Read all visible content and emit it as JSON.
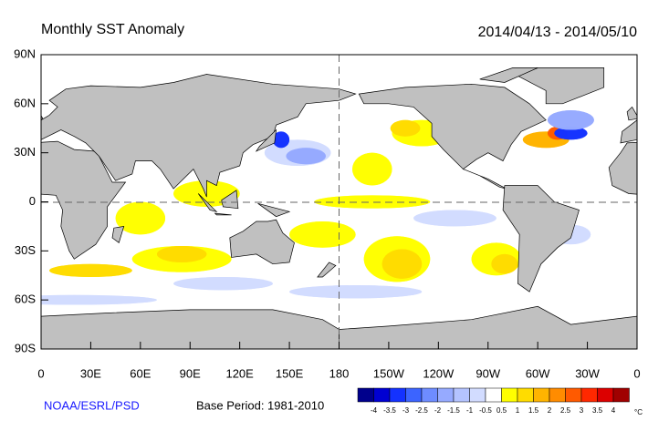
{
  "header": {
    "title": "Monthly SST Anomaly",
    "date_range": "2014/04/13 - 2014/05/10"
  },
  "map": {
    "lat_labels": [
      "90N",
      "60N",
      "30N",
      "0",
      "30S",
      "60S",
      "90S"
    ],
    "lon_labels": [
      "0",
      "30E",
      "60E",
      "90E",
      "120E",
      "150E",
      "180",
      "150W",
      "120W",
      "90W",
      "60W",
      "30W",
      "0"
    ]
  },
  "footer": {
    "credit": "NOAA/ESRL/PSD",
    "base_period": "Base Period: 1981-2010"
  },
  "colorbar": {
    "colors": [
      "#00008c",
      "#0000d2",
      "#1432ff",
      "#3c64ff",
      "#6e8cff",
      "#96aaff",
      "#b4c3ff",
      "#d2dcff",
      "#ffffff",
      "#ffff00",
      "#ffdc00",
      "#ffb400",
      "#ff8c00",
      "#ff5a00",
      "#ff2800",
      "#dc0000",
      "#a00000"
    ],
    "labels": [
      "-4",
      "-3.5",
      "-3",
      "-2.5",
      "-2",
      "-1.5",
      "-1",
      "-0.5",
      "0.5",
      "1",
      "1.5",
      "2",
      "2.5",
      "3",
      "3.5",
      "4"
    ],
    "unit": "°C"
  }
}
